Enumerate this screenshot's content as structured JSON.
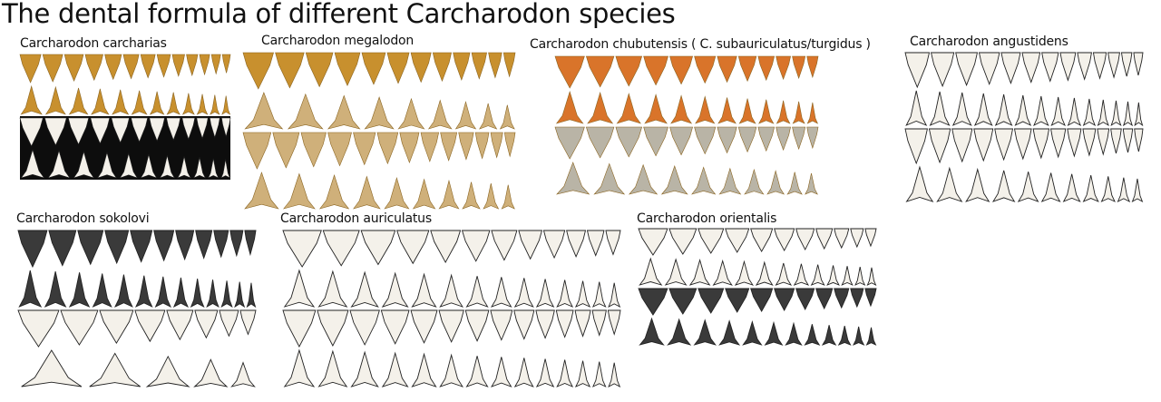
{
  "title": "The dental formula of different Carcharodon species",
  "palette": {
    "fossil_gold": "#c8902e",
    "fossil_tan": "#cfb07a",
    "fossil_orange": "#d9742a",
    "fossil_gray": "#b9b4a6",
    "dark_tooth": "#3a3a3a",
    "outline": "#222222",
    "white_tooth": "#f4f1ea",
    "photo_bg": "#0d0d0d"
  },
  "panels": [
    {
      "label": "Carcharodon carcharias",
      "style": "photo",
      "rows": [
        {
          "count": 13,
          "fill": "fossil_gold"
        },
        {
          "count": 12,
          "fill": "fossil_gold"
        },
        {
          "count": 12,
          "fill": "white_tooth",
          "bg": "photo_bg"
        },
        {
          "count": 11,
          "fill": "white_tooth",
          "bg": "photo_bg"
        }
      ]
    },
    {
      "label": "Carcharodon megalodon",
      "style": "photo",
      "rows": [
        {
          "count": 12,
          "fill": "fossil_gold"
        },
        {
          "count": 9,
          "fill": "fossil_tan"
        },
        {
          "count": 13,
          "fill": "fossil_tan"
        },
        {
          "count": 10,
          "fill": "fossil_tan"
        }
      ]
    },
    {
      "label": "Carcharodon chubutensis ( C. subauriculatus/turgidus )",
      "style": "photo",
      "rows": [
        {
          "count": 12,
          "fill": "fossil_orange"
        },
        {
          "count": 12,
          "fill": "fossil_orange"
        },
        {
          "count": 12,
          "fill": "fossil_gray"
        },
        {
          "count": 10,
          "fill": "fossil_gray"
        }
      ]
    },
    {
      "label": "Carcharodon angustidens",
      "style": "drawing",
      "rows": [
        {
          "count": 13,
          "fill": "white_tooth"
        },
        {
          "count": 14,
          "fill": "white_tooth"
        },
        {
          "count": 14,
          "fill": "white_tooth"
        },
        {
          "count": 11,
          "fill": "white_tooth"
        }
      ]
    },
    {
      "label": "Carcharodon sokolovi",
      "style": "mixed",
      "rows": [
        {
          "count": 11,
          "fill": "dark_tooth"
        },
        {
          "count": 13,
          "fill": "dark_tooth"
        },
        {
          "count": 8,
          "fill": "white_tooth"
        },
        {
          "count": 5,
          "fill": "white_tooth"
        }
      ]
    },
    {
      "label": "Carcharodon auriculatus",
      "style": "drawing",
      "rows": [
        {
          "count": 12,
          "fill": "white_tooth"
        },
        {
          "count": 14,
          "fill": "white_tooth"
        },
        {
          "count": 14,
          "fill": "white_tooth"
        },
        {
          "count": 14,
          "fill": "white_tooth"
        }
      ]
    },
    {
      "label": "Carcharodon orientalis",
      "style": "mixed",
      "rows": [
        {
          "count": 11,
          "fill": "white_tooth"
        },
        {
          "count": 13,
          "fill": "white_tooth"
        },
        {
          "count": 11,
          "fill": "dark_tooth"
        },
        {
          "count": 12,
          "fill": "dark_tooth"
        }
      ]
    }
  ]
}
